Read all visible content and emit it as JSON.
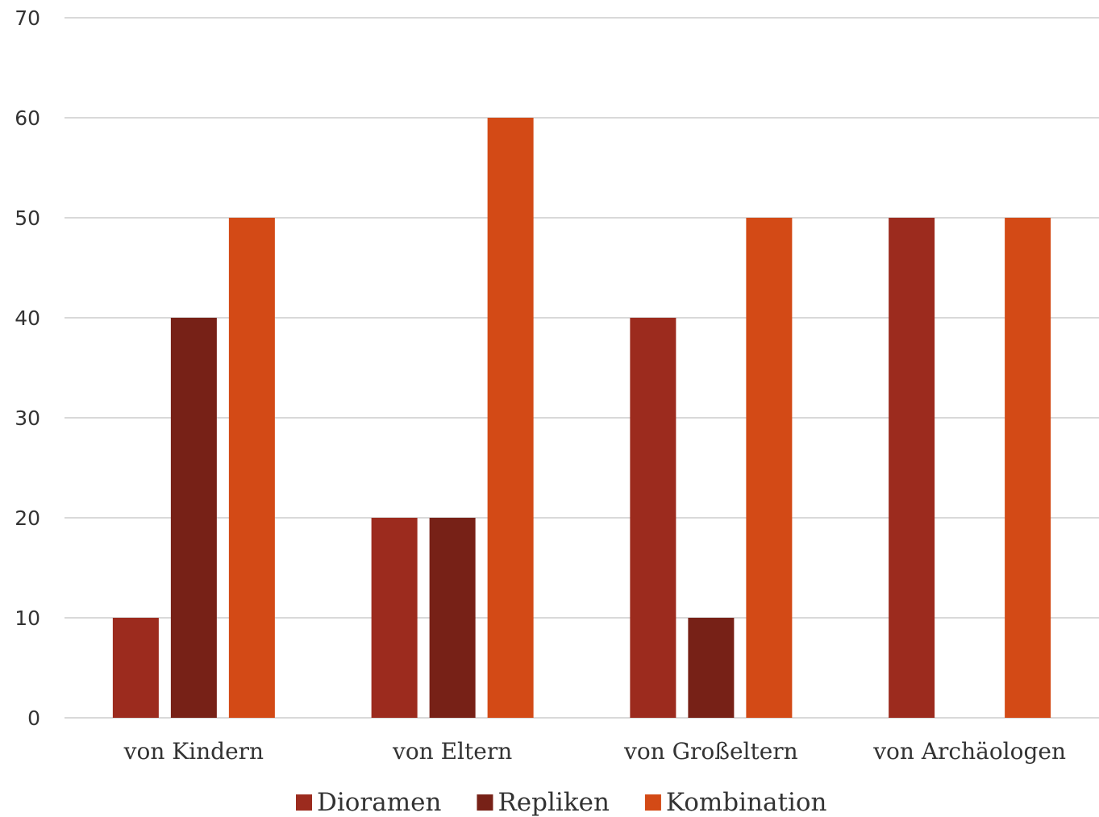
{
  "chart_data": {
    "type": "bar",
    "title": "",
    "xlabel": "",
    "ylabel": "",
    "categories": [
      "von Kindern",
      "von Eltern",
      "von Großeltern",
      "von Archäologen"
    ],
    "series": [
      {
        "name": "Dioramen",
        "values": [
          10,
          20,
          40,
          50
        ],
        "color": "#9c2b1e"
      },
      {
        "name": "Repliken",
        "values": [
          40,
          20,
          10,
          0
        ],
        "color": "#772117"
      },
      {
        "name": "Kombination",
        "values": [
          50,
          60,
          50,
          50
        ],
        "color": "#d34a16"
      }
    ],
    "ylim": [
      0,
      70
    ],
    "yticks": [
      0,
      10,
      20,
      30,
      40,
      50,
      60,
      70
    ],
    "grid": true,
    "legend_position": "bottom"
  }
}
